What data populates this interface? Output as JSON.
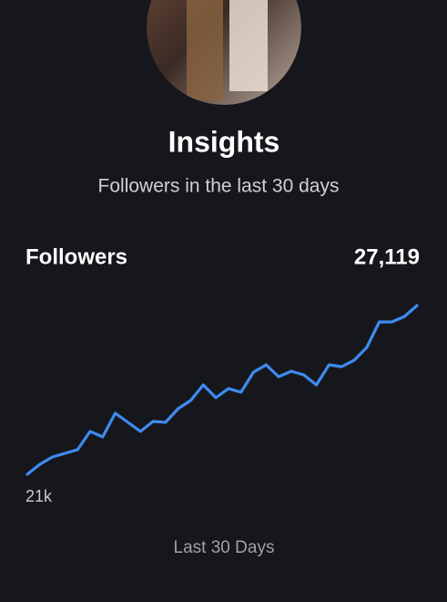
{
  "header": {
    "title": "Insights",
    "subtitle": "Followers in the last 30 days"
  },
  "chart_data": {
    "type": "line",
    "title": "Followers",
    "summary": "27,119",
    "xlabel": "Last 30 Days",
    "categories": [
      null,
      null,
      null,
      null,
      null,
      null,
      null,
      null,
      null,
      null,
      null,
      null,
      null,
      null,
      null,
      null,
      null,
      null,
      null,
      null,
      null,
      null,
      null,
      null,
      null,
      null,
      null,
      null,
      null,
      null,
      null,
      null
    ],
    "series": [
      {
        "name": "Followers",
        "color": "#3d8bf0",
        "values": [
          21000,
          21364,
          21629,
          21761,
          21893,
          22555,
          22356,
          23216,
          22886,
          22555,
          22919,
          22886,
          23382,
          23679,
          24242,
          23779,
          24110,
          23977,
          24705,
          24970,
          24540,
          24738,
          24606,
          24242,
          24970,
          24903,
          25135,
          25598,
          26524,
          26524,
          26723,
          27119
        ]
      }
    ],
    "ylim": [
      21000,
      27119
    ],
    "yticks": [
      {
        "value": 21000,
        "label": "21k"
      }
    ]
  }
}
